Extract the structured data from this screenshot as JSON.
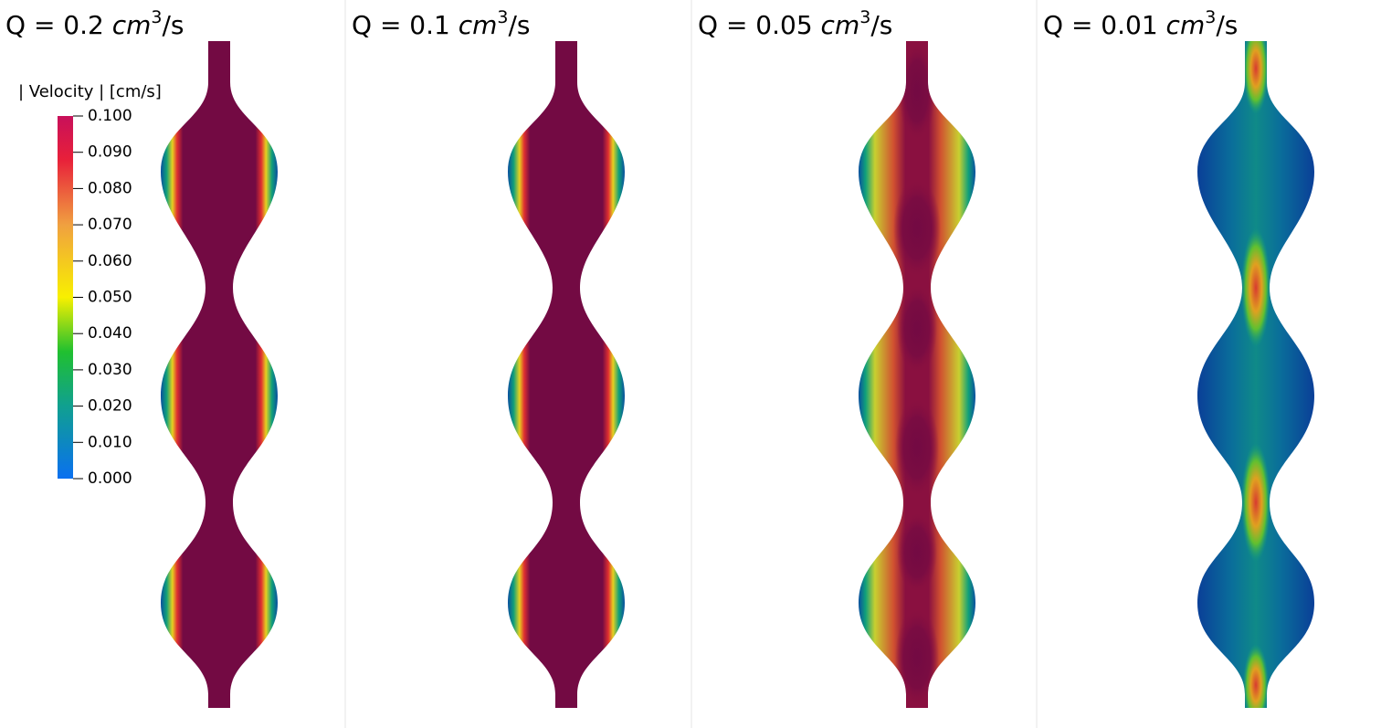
{
  "panels": [
    {
      "prefix": "Q = 0.2 ",
      "unit": "cm",
      "exponent": "3",
      "suffix": "/s"
    },
    {
      "prefix": "Q = 0.1 ",
      "unit": "cm",
      "exponent": "3",
      "suffix": "/s"
    },
    {
      "prefix": "Q = 0.05 ",
      "unit": "cm",
      "exponent": "3",
      "suffix": "/s"
    },
    {
      "prefix": "Q = 0.01 ",
      "unit": "cm",
      "exponent": "3",
      "suffix": "/s"
    }
  ],
  "colorbar": {
    "title": "| Velocity | [cm/s]",
    "range": [
      0,
      0.1
    ],
    "ticks": [
      {
        "value": 0.1,
        "label": "0.100"
      },
      {
        "value": 0.09,
        "label": "0.090"
      },
      {
        "value": 0.08,
        "label": "0.080"
      },
      {
        "value": 0.07,
        "label": "0.070"
      },
      {
        "value": 0.06,
        "label": "0.060"
      },
      {
        "value": 0.05,
        "label": "0.050"
      },
      {
        "value": 0.04,
        "label": "0.040"
      },
      {
        "value": 0.03,
        "label": "0.030"
      },
      {
        "value": 0.02,
        "label": "0.020"
      },
      {
        "value": 0.01,
        "label": "0.010"
      },
      {
        "value": 0,
        "label": "0.000"
      }
    ]
  }
}
